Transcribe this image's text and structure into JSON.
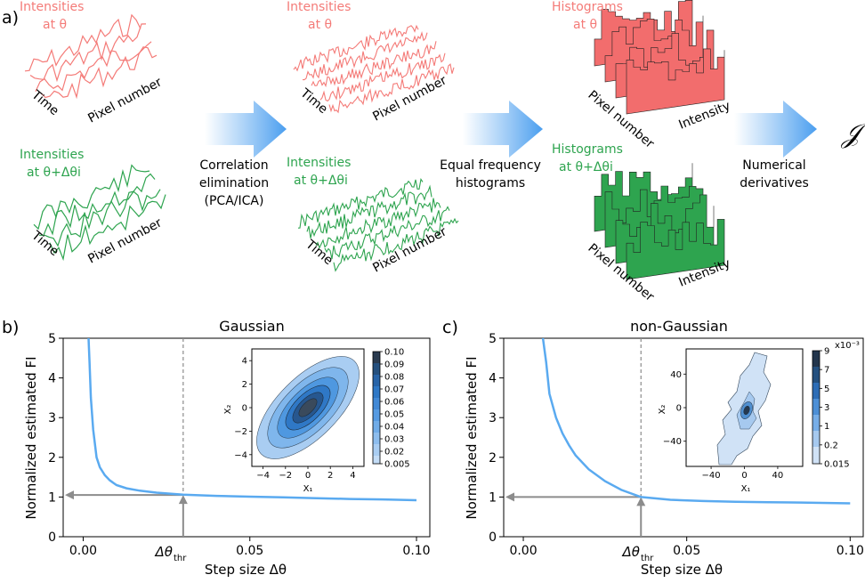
{
  "colors": {
    "red": "#f47b78",
    "red_fill": "#f26d6d",
    "green": "#2ea44f",
    "green_fill": "#2ea44f",
    "arrow_blue": "#5aa9f0",
    "curve_blue": "#5aaaf0",
    "guide_gray": "#8c8c8c"
  },
  "panel_a": {
    "label": "a)",
    "red_intensity_label": [
      "Intensities",
      "at θ"
    ],
    "green_intensity_label": [
      "Intensities",
      "at θ+Δθi"
    ],
    "red_hist_label": [
      "Histograms",
      "at θ"
    ],
    "green_hist_label": [
      "Histograms",
      "at θ+Δθi"
    ],
    "axis_time": "Time",
    "axis_pixel": "Pixel number",
    "axis_intensity": "Intensity",
    "step1": [
      "Correlation",
      "elimination",
      "(PCA/ICA)"
    ],
    "step2": [
      "Equal frequency",
      "histograms"
    ],
    "step3": [
      "Numerical",
      "derivatives"
    ],
    "result_symbol": "𝒥"
  },
  "chart_data": [
    {
      "type": "line",
      "panel_label": "b)",
      "title": "Gaussian",
      "xlabel": "Step size Δθ",
      "ylabel": "Normalized estimated FI",
      "xlim": [
        -0.006,
        0.104
      ],
      "ylim": [
        0,
        5
      ],
      "xticks": [
        0.0,
        0.05,
        0.1
      ],
      "xtick_labels": [
        "0.00",
        "0.05",
        "0.10"
      ],
      "yticks": [
        0,
        1,
        2,
        3,
        4,
        5
      ],
      "ytick_labels": [
        "0",
        "1",
        "2",
        "3",
        "4",
        "5"
      ],
      "threshold_x": 0.03,
      "threshold_y": 1.05,
      "threshold_label": "Δθ",
      "threshold_sub": "thr",
      "series": [
        {
          "x": [
            0.0016,
            0.0019,
            0.0023,
            0.003,
            0.004,
            0.005,
            0.0065,
            0.008,
            0.01,
            0.013,
            0.017,
            0.022,
            0.03,
            0.04,
            0.05,
            0.06,
            0.07,
            0.08,
            0.09,
            0.1
          ],
          "y": [
            5.0,
            4.4,
            3.5,
            2.7,
            2.0,
            1.75,
            1.55,
            1.42,
            1.3,
            1.22,
            1.16,
            1.11,
            1.06,
            1.03,
            1.01,
            0.99,
            0.97,
            0.95,
            0.94,
            0.92
          ]
        }
      ],
      "inset": {
        "type": "heatmap",
        "xlabel": "X₁",
        "ylabel": "X₂",
        "xticks": [
          -4,
          -2,
          0,
          2,
          4
        ],
        "yticks": [
          -4,
          -2,
          0,
          2,
          4
        ],
        "colorbar_ticks": [
          "0.10",
          "0.09",
          "0.08",
          "0.07",
          "0.06",
          "0.05",
          "0.04",
          "0.03",
          "0.02",
          "0.005"
        ]
      }
    },
    {
      "type": "line",
      "panel_label": "c)",
      "title": "non-Gaussian",
      "xlabel": "Step size Δθ",
      "ylabel": "Normalized estimated FI",
      "xlim": [
        -0.006,
        0.104
      ],
      "ylim": [
        0,
        5
      ],
      "xticks": [
        0.0,
        0.05,
        0.1
      ],
      "xtick_labels": [
        "0.00",
        "0.05",
        "0.10"
      ],
      "yticks": [
        0,
        1,
        2,
        3,
        4,
        5
      ],
      "ytick_labels": [
        "0",
        "1",
        "2",
        "3",
        "4",
        "5"
      ],
      "threshold_x": 0.036,
      "threshold_y": 1.0,
      "threshold_label": "Δθ",
      "threshold_sub": "thr",
      "series": [
        {
          "x": [
            0.006,
            0.007,
            0.008,
            0.01,
            0.012,
            0.014,
            0.016,
            0.02,
            0.025,
            0.03,
            0.036,
            0.045,
            0.055,
            0.065,
            0.075,
            0.085,
            0.1
          ],
          "y": [
            5.0,
            4.4,
            3.6,
            3.0,
            2.6,
            2.3,
            2.05,
            1.7,
            1.4,
            1.18,
            1.0,
            0.93,
            0.9,
            0.88,
            0.87,
            0.86,
            0.84
          ]
        }
      ],
      "inset": {
        "type": "heatmap",
        "xlabel": "X₁",
        "ylabel": "X₂",
        "xticks": [
          -40,
          0,
          40
        ],
        "yticks": [
          -40,
          0,
          40
        ],
        "colorbar_exponent": "x10⁻³",
        "colorbar_ticks": [
          "9",
          "7",
          "5",
          "3",
          "1",
          "0.2",
          "0.015"
        ]
      }
    }
  ]
}
